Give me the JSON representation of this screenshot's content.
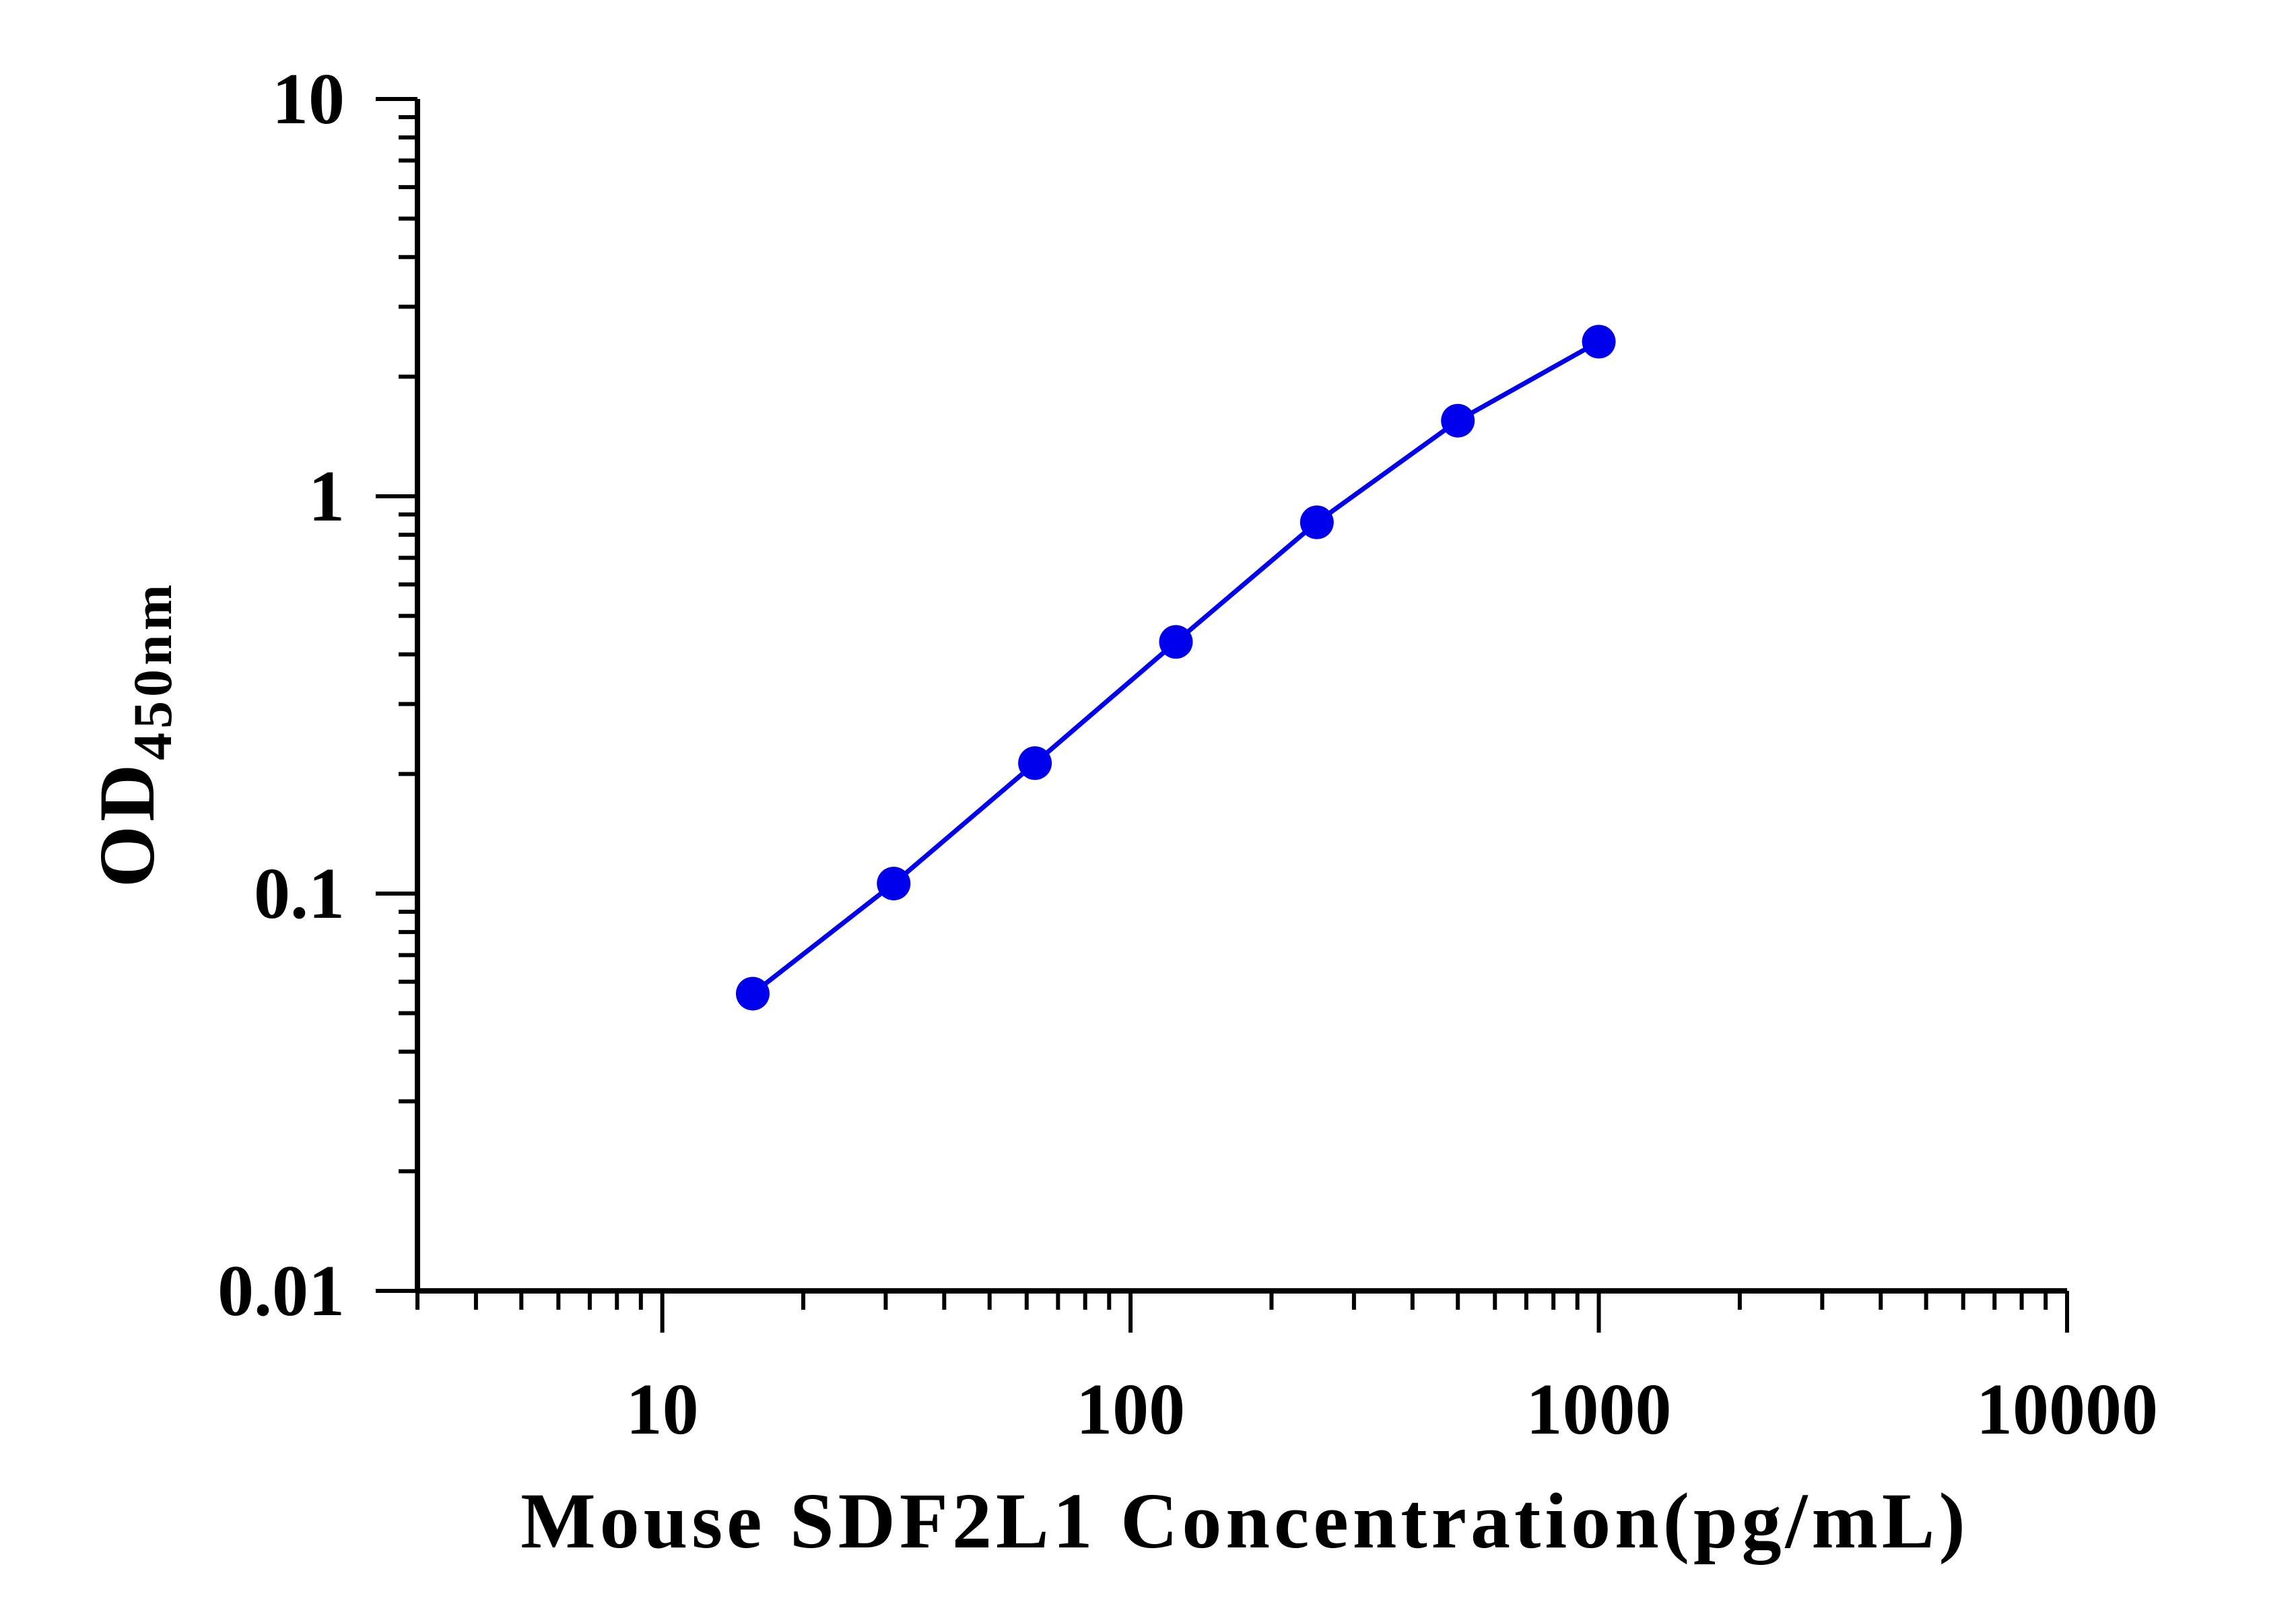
{
  "chart_data": {
    "type": "line",
    "title": "",
    "xlabel": "Mouse SDF2L1 Concentration(pg/mL)",
    "ylabel": {
      "main": "OD",
      "subscript": "450nm"
    },
    "x_scale": "log",
    "y_scale": "log",
    "xlim": [
      3,
      10000
    ],
    "ylim": [
      0.01,
      10
    ],
    "x_tick_labels": [
      "10",
      "100",
      "1000",
      "10000"
    ],
    "x_tick_values": [
      10,
      100,
      1000,
      10000
    ],
    "y_tick_labels": [
      "0.01",
      "0.1",
      "1",
      "10"
    ],
    "y_tick_values": [
      0.01,
      0.1,
      1,
      10
    ],
    "grid": false,
    "series": [
      {
        "color": "#0000ee",
        "x": [
          15.6,
          31.2,
          62.5,
          125,
          250,
          500,
          1000
        ],
        "y": [
          0.056,
          0.106,
          0.213,
          0.43,
          0.86,
          1.55,
          2.45
        ]
      }
    ]
  }
}
